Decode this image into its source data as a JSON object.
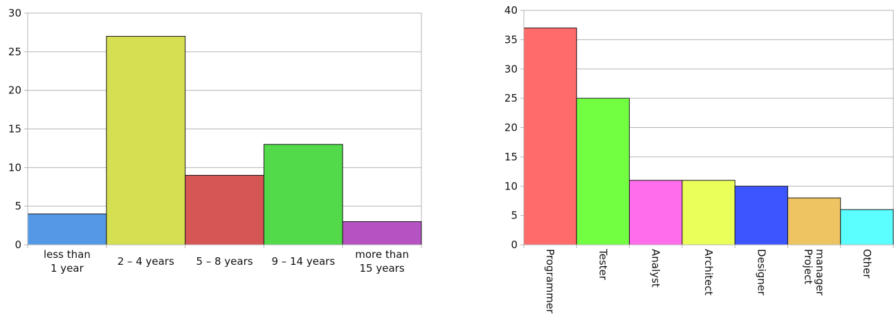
{
  "chart_data": [
    {
      "type": "bar",
      "title": "",
      "xlabel": "",
      "ylabel": "",
      "ylim": [
        0,
        30
      ],
      "yticks": [
        0,
        5,
        10,
        15,
        20,
        25,
        30
      ],
      "grid": true,
      "categories": [
        [
          "less than",
          "1 year"
        ],
        [
          "2 – 4 years"
        ],
        [
          "5 – 8 years"
        ],
        [
          "9 – 14 years"
        ],
        [
          "more than",
          "15 years"
        ]
      ],
      "values": [
        4,
        27,
        9,
        13,
        3
      ],
      "colors": [
        "#5599e6",
        "#d6de52",
        "#d65555",
        "#52da4a",
        "#b653c2"
      ]
    },
    {
      "type": "bar",
      "title": "",
      "xlabel": "",
      "ylabel": "",
      "ylim": [
        0,
        40
      ],
      "yticks": [
        0,
        5,
        10,
        15,
        20,
        25,
        30,
        35,
        40
      ],
      "grid": true,
      "categories": [
        [
          "Programmer"
        ],
        [
          "Tester"
        ],
        [
          "Analyst"
        ],
        [
          "Architect"
        ],
        [
          "Designer"
        ],
        [
          "Project",
          "manager"
        ],
        [
          "Other"
        ]
      ],
      "values": [
        37,
        25,
        11,
        11,
        10,
        8,
        6
      ],
      "colors": [
        "#ff6a6a",
        "#72ff42",
        "#ff6cec",
        "#eaff5a",
        "#3c55ff",
        "#eec362",
        "#5cffff"
      ]
    }
  ]
}
